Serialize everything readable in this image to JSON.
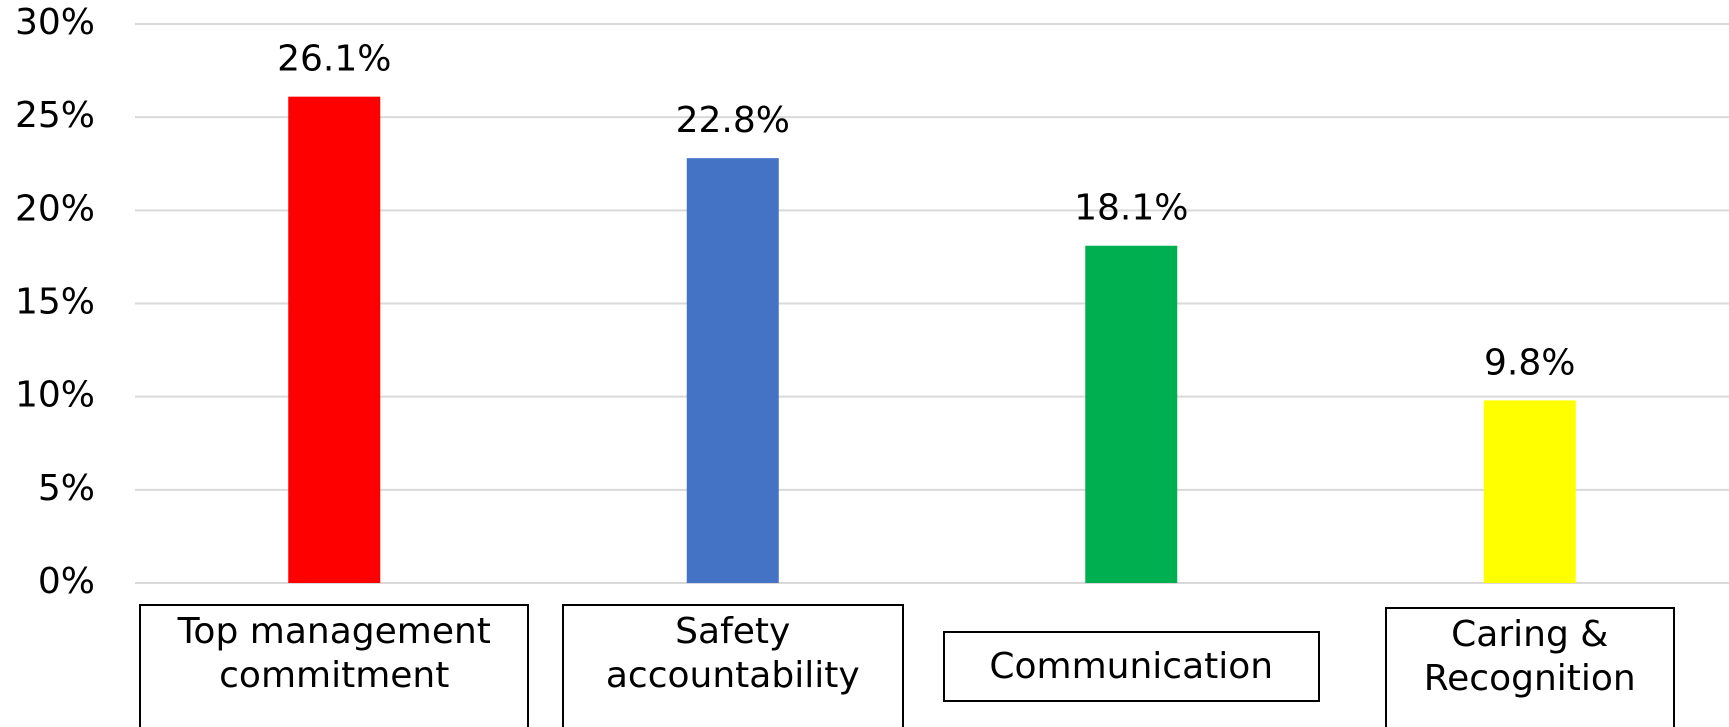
{
  "chart_data": {
    "type": "bar",
    "categories": [
      "Top management commitment",
      "Safety accountability",
      "Communication",
      "Caring & Recognition"
    ],
    "values": [
      26.1,
      22.8,
      18.1,
      9.8
    ],
    "value_labels": [
      "26.1%",
      "22.8%",
      "18.1%",
      "9.8%"
    ],
    "colors": [
      "#ff0000",
      "#4472c4",
      "#00b050",
      "#ffff00"
    ],
    "ylim": [
      0,
      30
    ],
    "yticks": [
      {
        "value": 0,
        "label": "0%"
      },
      {
        "value": 5,
        "label": "5%"
      },
      {
        "value": 10,
        "label": "10%"
      },
      {
        "value": 15,
        "label": "15%"
      },
      {
        "value": 20,
        "label": "20%"
      },
      {
        "value": 25,
        "label": "25%"
      },
      {
        "value": 30,
        "label": "30%"
      }
    ],
    "grid": true
  }
}
